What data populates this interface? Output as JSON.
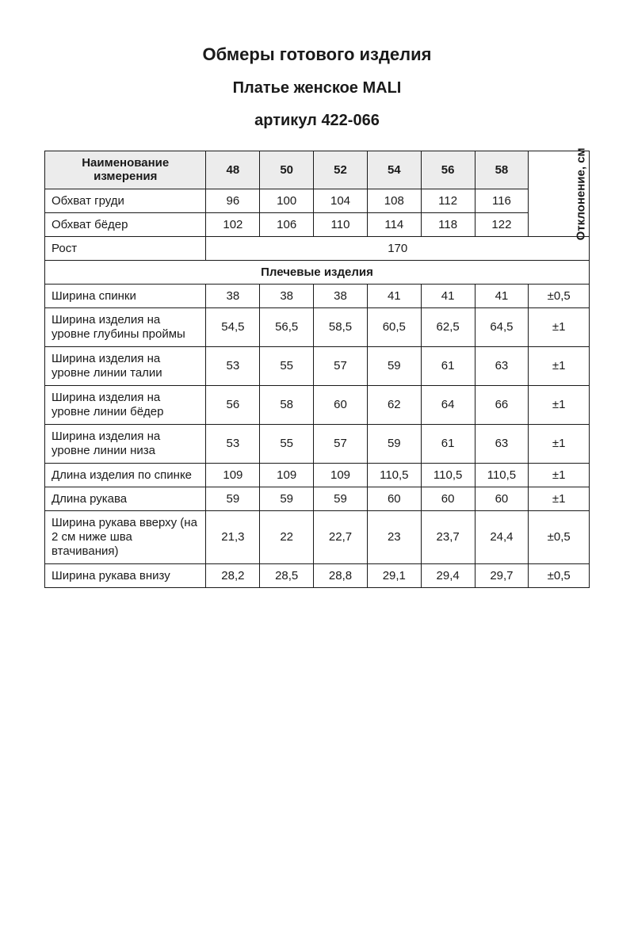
{
  "titles": {
    "main": "Обмеры готового изделия",
    "sub": "Платье женское MALI",
    "art": "артикул 422-066"
  },
  "header": {
    "name_col": "Наименование измерения",
    "sizes": [
      "48",
      "50",
      "52",
      "54",
      "56",
      "58"
    ],
    "deviation": "Отклонение, см"
  },
  "top_rows": [
    {
      "name": "Обхват груди",
      "vals": [
        "96",
        "100",
        "104",
        "108",
        "112",
        "116"
      ]
    },
    {
      "name": "Обхват бёдер",
      "vals": [
        "102",
        "106",
        "110",
        "114",
        "118",
        "122"
      ]
    }
  ],
  "height_row": {
    "name": "Рост",
    "value": "170"
  },
  "section_label": "Плечевые изделия",
  "rows": [
    {
      "name": "Ширина спинки",
      "vals": [
        "38",
        "38",
        "38",
        "41",
        "41",
        "41"
      ],
      "dev": "±0,5"
    },
    {
      "name": "Ширина изделия на уровне глубины проймы",
      "vals": [
        "54,5",
        "56,5",
        "58,5",
        "60,5",
        "62,5",
        "64,5"
      ],
      "dev": "±1",
      "two_line": true
    },
    {
      "name": "Ширина изделия на уровне линии талии",
      "vals": [
        "53",
        "55",
        "57",
        "59",
        "61",
        "63"
      ],
      "dev": "±1",
      "two_line": true
    },
    {
      "name": "Ширина изделия на уровне линии бёдер",
      "vals": [
        "56",
        "58",
        "60",
        "62",
        "64",
        "66"
      ],
      "dev": "±1",
      "two_line": true
    },
    {
      "name": "Ширина изделия на уровне линии низа",
      "vals": [
        "53",
        "55",
        "57",
        "59",
        "61",
        "63"
      ],
      "dev": "±1",
      "two_line": true
    },
    {
      "name": "Длина изделия по спинке",
      "vals": [
        "109",
        "109",
        "109",
        "110,5",
        "110,5",
        "110,5"
      ],
      "dev": "±1"
    },
    {
      "name": "Длина рукава",
      "vals": [
        "59",
        "59",
        "59",
        "60",
        "60",
        "60"
      ],
      "dev": "±1"
    },
    {
      "name": "Ширина рукава вверху (на 2 см ниже шва втачивания)",
      "vals": [
        "21,3",
        "22",
        "22,7",
        "23",
        "23,7",
        "24,4"
      ],
      "dev": "±0,5",
      "three_line": true
    },
    {
      "name": "Ширина рукава внизу",
      "vals": [
        "28,2",
        "28,5",
        "28,8",
        "29,1",
        "29,4",
        "29,7"
      ],
      "dev": "±0,5"
    }
  ],
  "style": {
    "header_bg": "#ececec",
    "border": "#1a1a1a",
    "font_size_body": 15,
    "font_size_title_main": 22,
    "font_size_title_sub": 20
  }
}
